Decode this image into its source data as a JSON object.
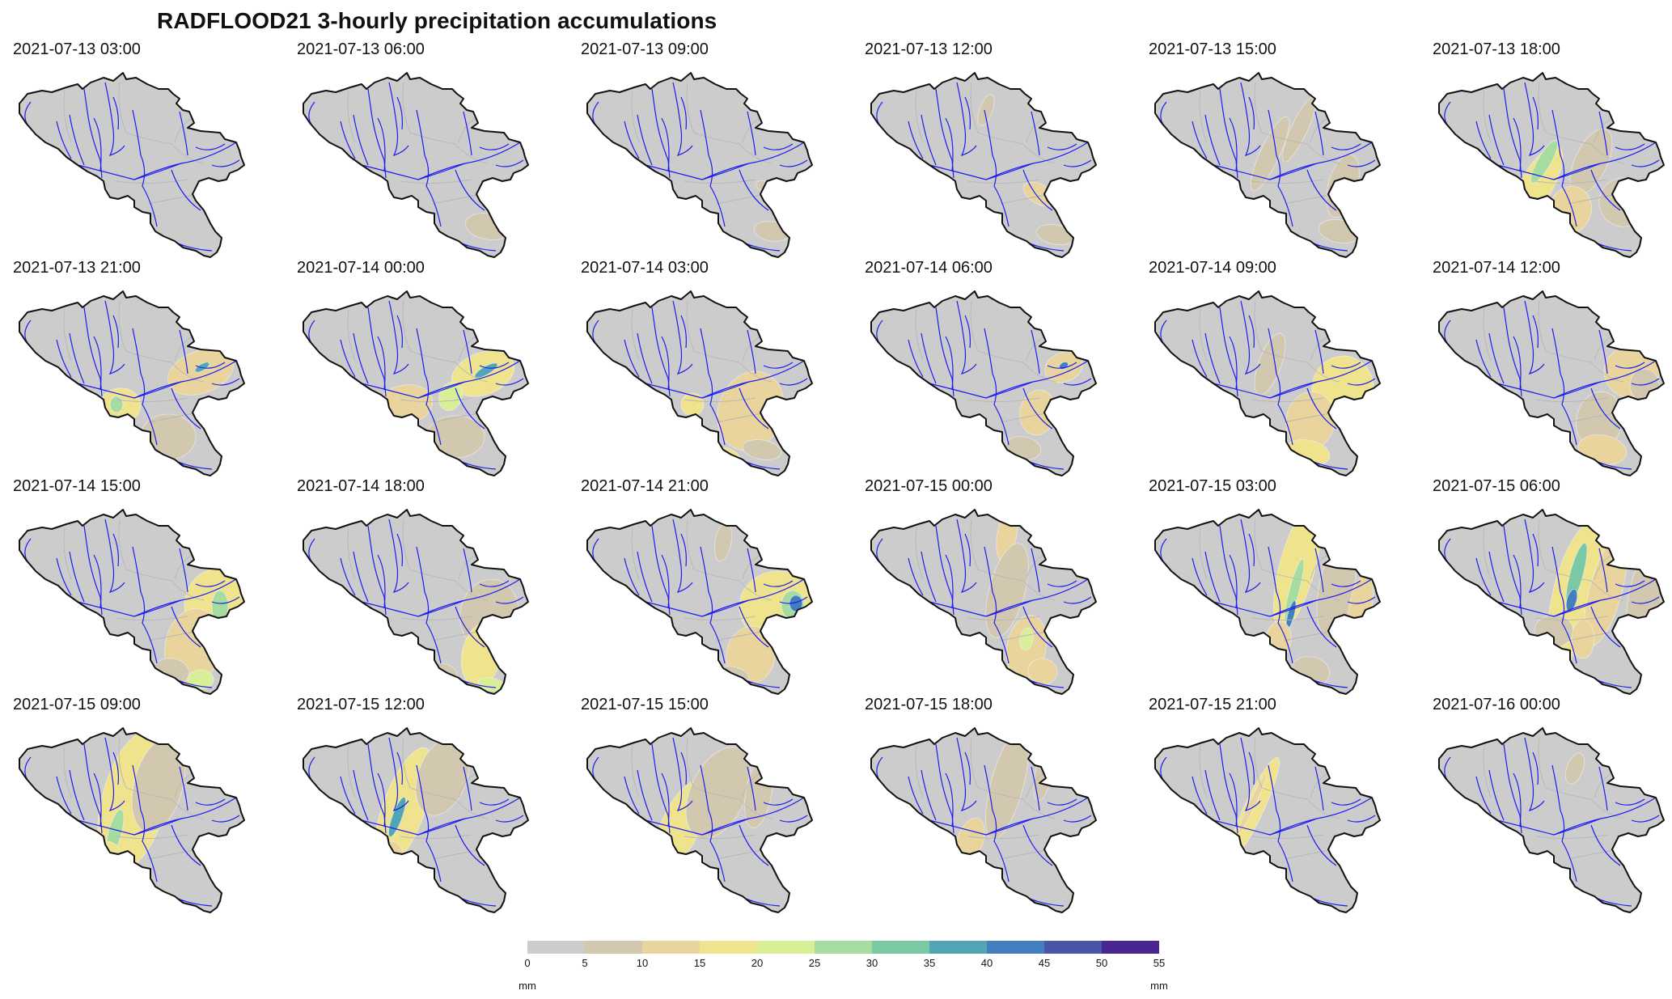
{
  "title": "RADFLOOD21 3-hourly precipitation accumulations",
  "panels": [
    {
      "label": "2021-07-13 03:00"
    },
    {
      "label": "2021-07-13 06:00"
    },
    {
      "label": "2021-07-13 09:00"
    },
    {
      "label": "2021-07-13 12:00"
    },
    {
      "label": "2021-07-13 15:00"
    },
    {
      "label": "2021-07-13 18:00"
    },
    {
      "label": "2021-07-13 21:00"
    },
    {
      "label": "2021-07-14 00:00"
    },
    {
      "label": "2021-07-14 03:00"
    },
    {
      "label": "2021-07-14 06:00"
    },
    {
      "label": "2021-07-14 09:00"
    },
    {
      "label": "2021-07-14 12:00"
    },
    {
      "label": "2021-07-14 15:00"
    },
    {
      "label": "2021-07-14 18:00"
    },
    {
      "label": "2021-07-14 21:00"
    },
    {
      "label": "2021-07-15 00:00"
    },
    {
      "label": "2021-07-15 03:00"
    },
    {
      "label": "2021-07-15 06:00"
    },
    {
      "label": "2021-07-15 09:00"
    },
    {
      "label": "2021-07-15 12:00"
    },
    {
      "label": "2021-07-15 15:00"
    },
    {
      "label": "2021-07-15 18:00"
    },
    {
      "label": "2021-07-15 21:00"
    },
    {
      "label": "2021-07-16 00:00"
    }
  ],
  "colorbar": {
    "ticks": [
      "0",
      "5",
      "10",
      "15",
      "20",
      "25",
      "30",
      "35",
      "40",
      "45",
      "50",
      "55"
    ],
    "unit_left": "mm",
    "unit_right": "mm",
    "colors": [
      "#cccccc",
      "#d2c8b0",
      "#e8d49c",
      "#efe38e",
      "#d8ef98",
      "#a6dca0",
      "#78c9a4",
      "#50a6b4",
      "#437fbe",
      "#4a54a8",
      "#4a2790"
    ]
  },
  "colors": {
    "land": "#cccccc",
    "border": "#111111",
    "rivers": "#1c1cf0",
    "provinces": "#b6b6b6"
  }
}
